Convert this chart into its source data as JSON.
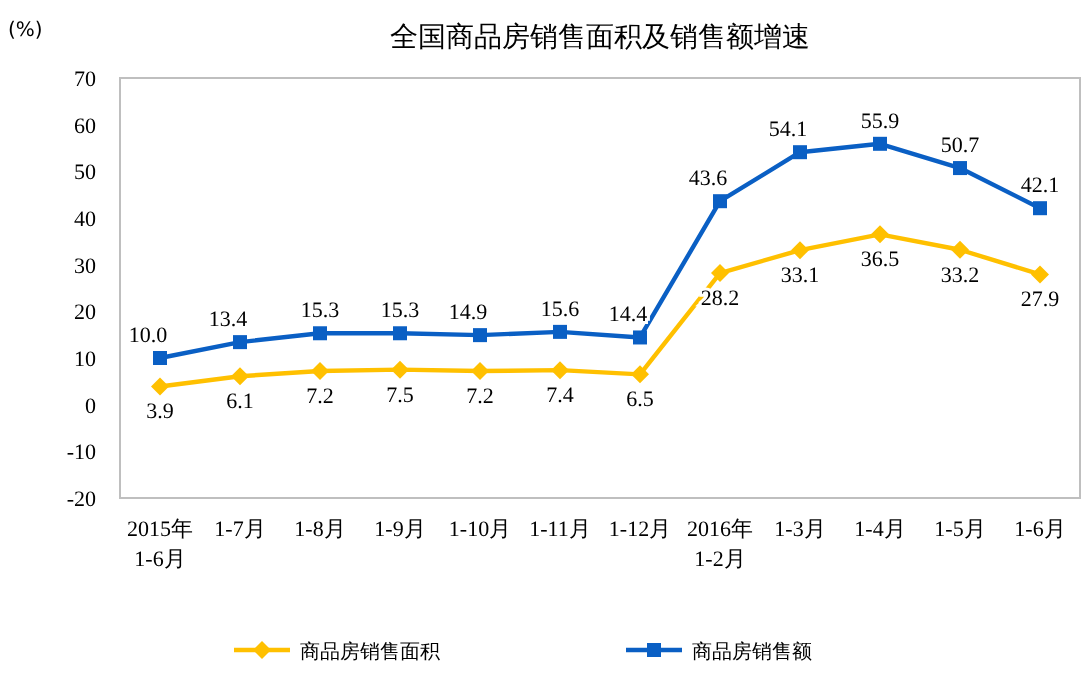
{
  "chart_data": {
    "type": "line",
    "title": "全国商品房销售面积及销售额增速",
    "ylabel": "(%)",
    "categories": [
      "2015年 1-6月",
      "1-7月",
      "1-8月",
      "1-9月",
      "1-10月",
      "1-11月",
      "1-12月",
      "2016年 1-2月",
      "1-3月",
      "1-4月",
      "1-5月",
      "1-6月"
    ],
    "series": [
      {
        "name": "商品房销售面积",
        "color": "#ffc000",
        "marker": "diamond",
        "values": [
          3.9,
          6.1,
          7.2,
          7.5,
          7.2,
          7.4,
          6.5,
          28.2,
          33.1,
          36.5,
          33.2,
          27.9
        ],
        "value_labels": [
          "3.9",
          "6.1",
          "7.2",
          "7.5",
          "7.2",
          "7.4",
          "6.5",
          "28.2",
          "33.1",
          "36.5",
          "33.2",
          "27.9"
        ]
      },
      {
        "name": "商品房销售额",
        "color": "#0a5fc4",
        "marker": "square",
        "values": [
          10.0,
          13.4,
          15.3,
          15.3,
          14.9,
          15.6,
          14.4,
          43.6,
          54.1,
          55.9,
          50.7,
          42.1
        ],
        "value_labels": [
          "10.0",
          "13.4",
          "15.3",
          "15.3",
          "14.9",
          "15.6",
          "14.4",
          "43.6",
          "54.1",
          "55.9",
          "50.7",
          "42.1"
        ]
      }
    ],
    "ylim": [
      -20,
      70
    ],
    "yticks": [
      -20,
      -10,
      0,
      10,
      20,
      30,
      40,
      50,
      60,
      70
    ],
    "grid": false,
    "legend": "bottom"
  }
}
